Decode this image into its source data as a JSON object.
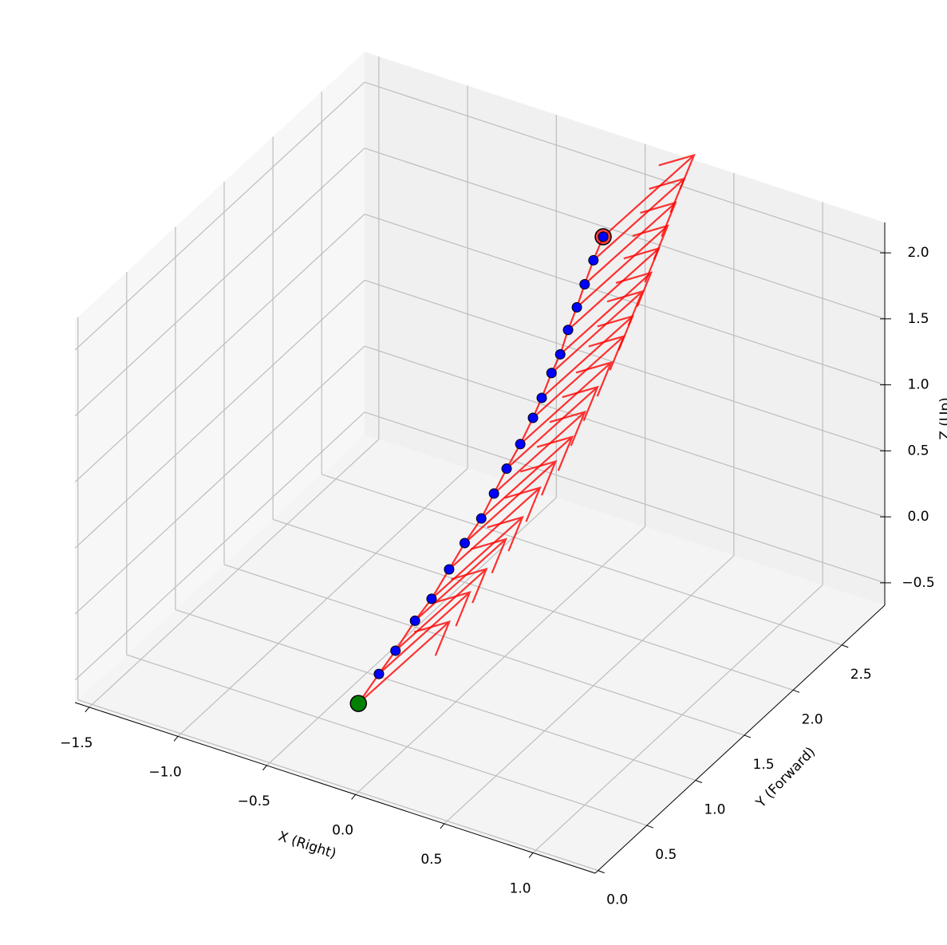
{
  "chart_data": {
    "type": "quiver3d",
    "xlabel": "X (Right)",
    "ylabel": "Y (Forward)",
    "zlabel": "Z (Up)",
    "x": [
      0,
      0,
      0,
      0,
      0,
      0,
      0,
      0,
      0,
      0,
      0,
      0,
      0,
      0,
      0,
      0,
      0,
      0,
      0,
      0
    ],
    "y": [
      0,
      0.21,
      0.38,
      0.58,
      0.75,
      0.93,
      1.09,
      1.26,
      1.39,
      1.52,
      1.66,
      1.79,
      1.88,
      1.98,
      2.07,
      2.15,
      2.24,
      2.32,
      2.41,
      2.51
    ],
    "z": [
      0,
      0.08,
      0.14,
      0.23,
      0.28,
      0.38,
      0.47,
      0.54,
      0.64,
      0.74,
      0.83,
      0.94,
      1.03,
      1.15,
      1.23,
      1.36,
      1.47,
      1.59,
      1.71,
      1.82
    ],
    "u": [
      0.1,
      0.1,
      0.1,
      0.1,
      0.1,
      0.1,
      0.1,
      0.1,
      0.1,
      0.1,
      0.1,
      0.1,
      0.1,
      0.1,
      0.1,
      0.1,
      0.1,
      0.1,
      0.1,
      0.1
    ],
    "v": [
      0.75,
      0.75,
      0.75,
      0.75,
      0.75,
      0.75,
      0.75,
      0.75,
      0.75,
      0.75,
      0.75,
      0.75,
      0.75,
      0.75,
      0.75,
      0.75,
      0.75,
      0.75,
      0.75,
      0.75
    ],
    "w": [
      0.15,
      0.15,
      0.15,
      0.15,
      0.15,
      0.15,
      0.15,
      0.15,
      0.15,
      0.15,
      0.15,
      0.15,
      0.15,
      0.15,
      0.15,
      0.15,
      0.15,
      0.15,
      0.15,
      0.15
    ],
    "xlim": [
      -1.58,
      1.35
    ],
    "ylim": [
      -0.03,
      2.94
    ],
    "zlim": [
      -0.67,
      2.23
    ],
    "xticks": [
      {
        "value": -1.5,
        "label": "−1.5"
      },
      {
        "value": -1,
        "label": "−1.0"
      },
      {
        "value": -0.5,
        "label": "−0.5"
      },
      {
        "value": 0,
        "label": "0.0"
      },
      {
        "value": 0.5,
        "label": "0.5"
      },
      {
        "value": 1,
        "label": "1.0"
      }
    ],
    "yticks": [
      {
        "value": 0,
        "label": "0.0"
      },
      {
        "value": 0.5,
        "label": "0.5"
      },
      {
        "value": 1,
        "label": "1.0"
      },
      {
        "value": 1.5,
        "label": "1.5"
      },
      {
        "value": 2,
        "label": "2.0"
      },
      {
        "value": 2.5,
        "label": "2.5"
      }
    ],
    "zticks": [
      {
        "value": -0.5,
        "label": "−0.5"
      },
      {
        "value": 0,
        "label": "0.0"
      },
      {
        "value": 0.5,
        "label": "0.5"
      },
      {
        "value": 1,
        "label": "1.0"
      },
      {
        "value": 1.5,
        "label": "1.5"
      },
      {
        "value": 2,
        "label": "2.0"
      }
    ],
    "grid": true,
    "color": "#ff0000",
    "marker_color": "#0000ff",
    "start_color": "#008000",
    "end_color": "#ff0000"
  }
}
